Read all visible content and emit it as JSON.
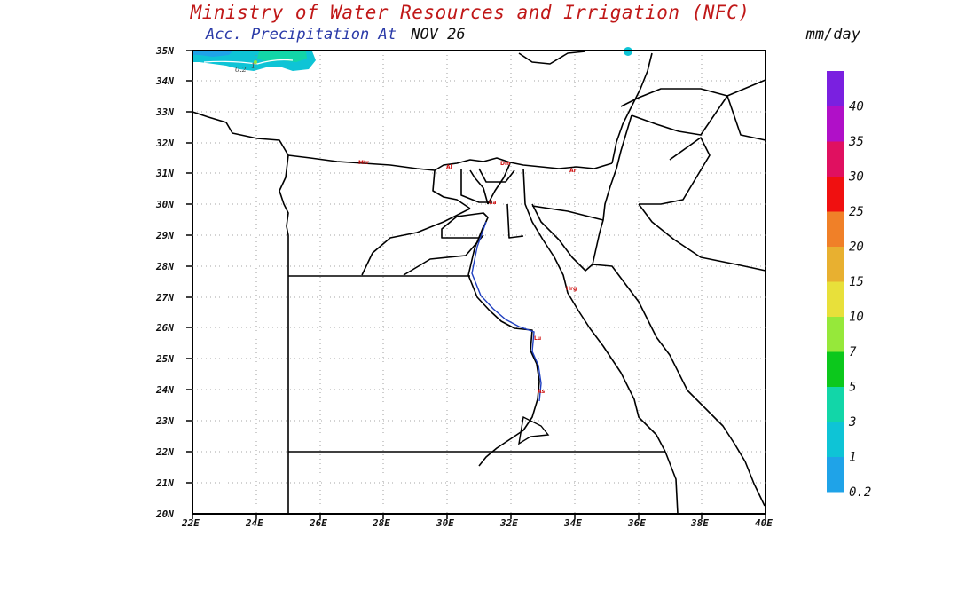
{
  "header": {
    "title": "Ministry of Water Resources and Irrigation (NFC)",
    "product": "Acc. Precipitation",
    "at_label": "At",
    "date": "NOV 26",
    "units": "mm/day"
  },
  "map": {
    "lat_labels": [
      "35N",
      "34N",
      "33N",
      "32N",
      "31N",
      "30N",
      "29N",
      "28N",
      "27N",
      "26N",
      "25N",
      "24N",
      "23N",
      "22N",
      "21N",
      "20N"
    ],
    "lon_labels": [
      "22E",
      "24E",
      "26E",
      "28E",
      "30E",
      "32E",
      "34E",
      "36E",
      "38E",
      "40E"
    ],
    "contour_labels": [
      "0.2",
      "1"
    ],
    "city_labels": [
      "Mtr",
      "Al",
      "Dm",
      "Ar",
      "Ca",
      "Hrg",
      "Lu",
      "As"
    ]
  },
  "colorbar": {
    "levels": [
      "0.2",
      "1",
      "3",
      "5",
      "7",
      "10",
      "15",
      "20",
      "25",
      "30",
      "35",
      "40"
    ],
    "colors": [
      "#1fa3e8",
      "#0ec4d6",
      "#12d6a8",
      "#0cc81c",
      "#96e83a",
      "#e8e03a",
      "#e8b030",
      "#f08028",
      "#f01010",
      "#e01060",
      "#b010c8",
      "#7a20e0"
    ]
  }
}
